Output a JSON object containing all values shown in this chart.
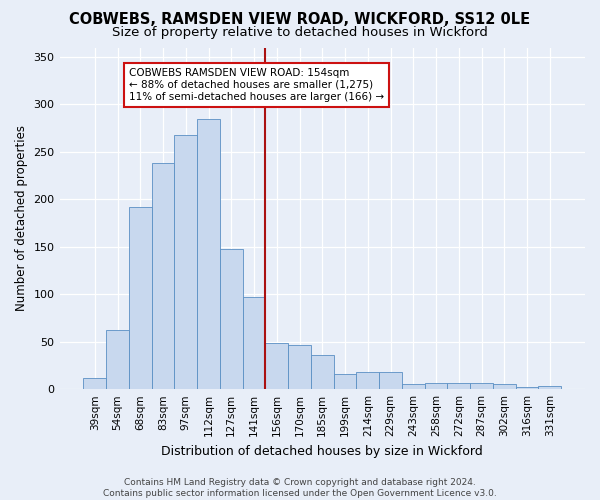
{
  "title1": "COBWEBS, RAMSDEN VIEW ROAD, WICKFORD, SS12 0LE",
  "title2": "Size of property relative to detached houses in Wickford",
  "xlabel": "Distribution of detached houses by size in Wickford",
  "ylabel": "Number of detached properties",
  "categories": [
    "39sqm",
    "54sqm",
    "68sqm",
    "83sqm",
    "97sqm",
    "112sqm",
    "127sqm",
    "141sqm",
    "156sqm",
    "170sqm",
    "185sqm",
    "199sqm",
    "214sqm",
    "229sqm",
    "243sqm",
    "258sqm",
    "272sqm",
    "287sqm",
    "302sqm",
    "316sqm",
    "331sqm"
  ],
  "values": [
    12,
    62,
    192,
    238,
    268,
    285,
    148,
    97,
    49,
    47,
    36,
    16,
    18,
    18,
    5,
    7,
    7,
    6,
    5,
    2,
    3
  ],
  "bar_color": "#c8d8ee",
  "bar_edge_color": "#5a8fc4",
  "vline_color": "#aa1111",
  "annotation_text": "COBWEBS RAMSDEN VIEW ROAD: 154sqm\n← 88% of detached houses are smaller (1,275)\n11% of semi-detached houses are larger (166) →",
  "annotation_box_color": "#ffffff",
  "annotation_box_edge_color": "#cc1111",
  "ylim": [
    0,
    360
  ],
  "yticks": [
    0,
    50,
    100,
    150,
    200,
    250,
    300,
    350
  ],
  "background_color": "#e8eef8",
  "footer_text": "Contains HM Land Registry data © Crown copyright and database right 2024.\nContains public sector information licensed under the Open Government Licence v3.0.",
  "title_fontsize": 10.5,
  "subtitle_fontsize": 9.5,
  "ylabel_fontsize": 8.5,
  "xlabel_fontsize": 9,
  "tick_fontsize": 7.5,
  "annotation_fontsize": 7.5,
  "footer_fontsize": 6.5
}
